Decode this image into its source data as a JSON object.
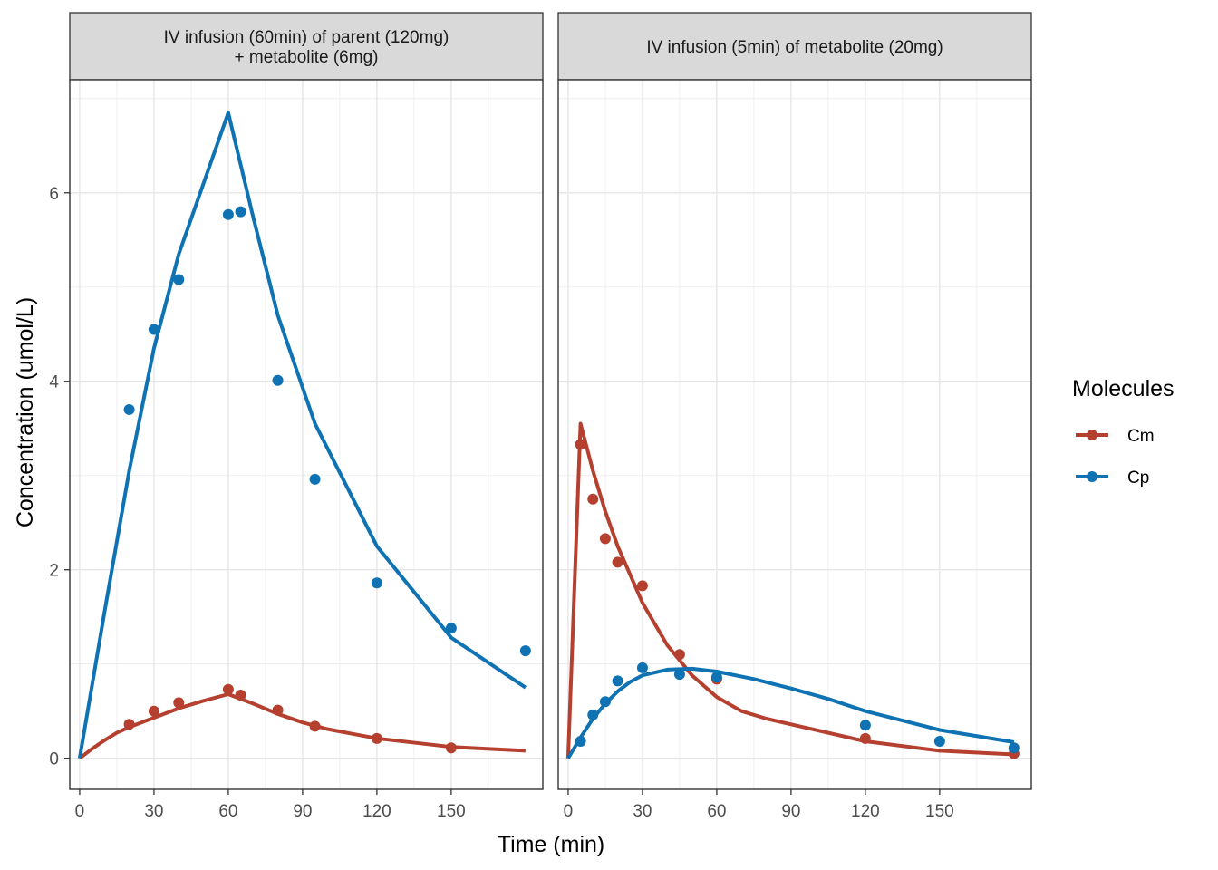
{
  "chart_data": {
    "type": "line",
    "xlabel": "Time (min)",
    "ylabel": "Concentration (umol/L)",
    "legend": {
      "title": "Molecules",
      "placement": "right",
      "entries": [
        {
          "name": "Cm",
          "color": "#b5402f"
        },
        {
          "name": "Cp",
          "color": "#0f72b3"
        }
      ]
    },
    "x_ticks": [
      "0",
      "30",
      "60",
      "90",
      "120",
      "150"
    ],
    "y_ticks": [
      "0",
      "2",
      "4",
      "6"
    ],
    "xlim": [
      -4,
      187
    ],
    "ylim": [
      -0.33,
      7.2
    ],
    "grid": true,
    "panels": [
      {
        "strip": [
          "IV infusion (60min) of parent (120mg)",
          "+ metabolite (6mg)"
        ],
        "series": [
          {
            "name": "Cm",
            "color": "#b5402f",
            "line": {
              "x": [
                0,
                5,
                10,
                15,
                20,
                30,
                40,
                50,
                60,
                70,
                80,
                90,
                100,
                120,
                150,
                180
              ],
              "y": [
                0,
                0.1,
                0.19,
                0.27,
                0.33,
                0.43,
                0.53,
                0.61,
                0.68,
                0.58,
                0.47,
                0.38,
                0.31,
                0.21,
                0.12,
                0.08
              ]
            },
            "points": {
              "x": [
                20,
                30,
                40,
                60,
                65,
                80,
                95,
                120,
                150
              ],
              "y": [
                0.36,
                0.5,
                0.59,
                0.73,
                0.67,
                0.51,
                0.34,
                0.21,
                0.11
              ]
            }
          },
          {
            "name": "Cp",
            "color": "#0f72b3",
            "line": {
              "x": [
                0,
                10,
                20,
                30,
                40,
                50,
                60,
                70,
                80,
                95,
                120,
                150,
                180
              ],
              "y": [
                0,
                1.55,
                3.05,
                4.35,
                5.35,
                6.1,
                6.85,
                5.75,
                4.7,
                3.55,
                2.25,
                1.28,
                0.75
              ]
            },
            "points": {
              "x": [
                20,
                30,
                40,
                60,
                65,
                80,
                95,
                120,
                150,
                180
              ],
              "y": [
                3.7,
                4.55,
                5.08,
                5.77,
                5.8,
                4.01,
                2.96,
                1.86,
                1.38,
                1.14
              ]
            }
          }
        ]
      },
      {
        "strip": [
          "IV infusion (5min) of metabolite (20mg)"
        ],
        "series": [
          {
            "name": "Cm",
            "color": "#b5402f",
            "line": {
              "x": [
                0,
                5,
                10,
                15,
                20,
                30,
                40,
                50,
                60,
                70,
                80,
                95,
                120,
                150,
                180
              ],
              "y": [
                0,
                3.55,
                3.05,
                2.62,
                2.25,
                1.65,
                1.2,
                0.88,
                0.65,
                0.5,
                0.42,
                0.33,
                0.18,
                0.08,
                0.04
              ]
            },
            "points": {
              "x": [
                5,
                10,
                15,
                20,
                30,
                45,
                60,
                120,
                180
              ],
              "y": [
                3.33,
                2.75,
                2.33,
                2.08,
                1.83,
                1.1,
                0.84,
                0.21,
                0.05
              ]
            }
          },
          {
            "name": "Cp",
            "color": "#0f72b3",
            "line": {
              "x": [
                0,
                5,
                10,
                15,
                20,
                25,
                30,
                40,
                50,
                60,
                75,
                90,
                105,
                120,
                150,
                180
              ],
              "y": [
                0,
                0.22,
                0.42,
                0.58,
                0.71,
                0.81,
                0.88,
                0.94,
                0.95,
                0.92,
                0.84,
                0.74,
                0.63,
                0.5,
                0.3,
                0.17
              ]
            },
            "points": {
              "x": [
                5,
                10,
                15,
                20,
                30,
                45,
                60,
                120,
                150,
                180
              ],
              "y": [
                0.18,
                0.46,
                0.6,
                0.82,
                0.96,
                0.89,
                0.86,
                0.35,
                0.18,
                0.11
              ]
            }
          }
        ]
      }
    ]
  }
}
